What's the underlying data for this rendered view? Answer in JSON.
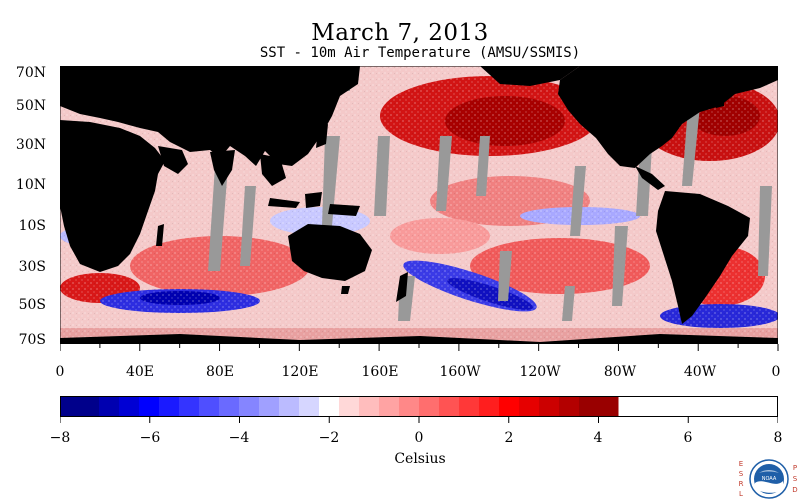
{
  "title": "March 7, 2013",
  "subtitle": "SST - 10m Air Temperature (AMSU/SSMIS)",
  "map": {
    "latitude_labels": [
      "70N",
      "50N",
      "30N",
      "10N",
      "10S",
      "30S",
      "50S",
      "70S"
    ],
    "longitude_labels": [
      "0",
      "40E",
      "80E",
      "120E",
      "160E",
      "160W",
      "120W",
      "80W",
      "40W",
      "0"
    ],
    "colors": {
      "land": "#000000",
      "missing": "#999999",
      "warm": "#ff0000",
      "cold": "#0000ff"
    }
  },
  "colorbar": {
    "min": -8,
    "max": 8,
    "step": 0.5,
    "tick_labels": [
      "−8",
      "−6",
      "−4",
      "−2",
      "0",
      "2",
      "4",
      "6",
      "8"
    ],
    "unit": "Celsius",
    "colors": [
      "#00008b",
      "#0000b0",
      "#0000d4",
      "#0000ff",
      "#1a1aff",
      "#3434ff",
      "#4f4fff",
      "#6a6aff",
      "#8585ff",
      "#a0a0ff",
      "#bbbbff",
      "#d6d6ff",
      "#ffffff",
      "#ffd8d8",
      "#ffbdbd",
      "#ffa3a3",
      "#ff8888",
      "#ff6e6e",
      "#ff5353",
      "#ff3838",
      "#ff1e1e",
      "#ff0000",
      "#e60000",
      "#cc0000",
      "#b30000",
      "#990000"
    ]
  },
  "logo": {
    "left_letters": [
      "E",
      "S",
      "R",
      "L"
    ],
    "right_letters": [
      "P",
      "S",
      "D"
    ],
    "badge_text": "NOAA"
  }
}
